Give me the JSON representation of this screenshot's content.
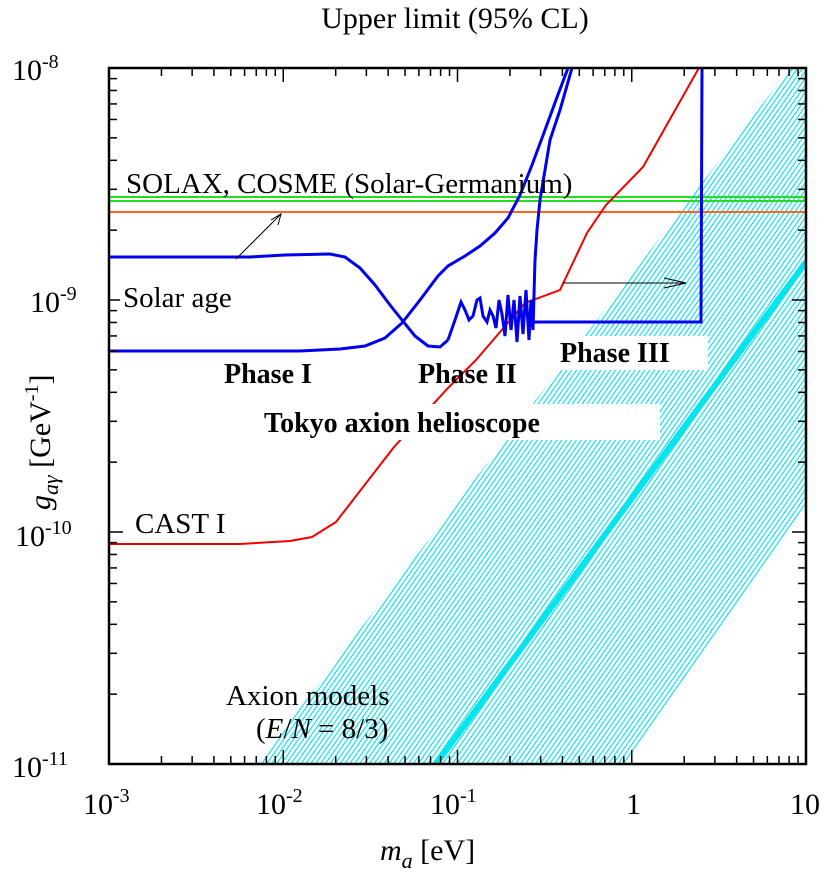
{
  "chart_data": {
    "type": "line",
    "title": "Upper limit (95% CL)",
    "xlabel": "m_a [eV]",
    "ylabel": "g_aγ [GeV^-1]",
    "xscale": "log",
    "yscale": "log",
    "xlim": [
      0.001,
      10
    ],
    "ylim": [
      1e-11,
      1e-08
    ],
    "x_tick_labels": [
      "10^-3",
      "10^-2",
      "10^-1",
      "1",
      "10"
    ],
    "y_tick_labels": [
      "10^-11",
      "10^-10",
      "10^-9",
      "10^-8"
    ],
    "grid": false,
    "series": [
      {
        "name": "Phase I (lower)",
        "color": "#0000ee",
        "points": [
          [
            0.001,
            6.1e-10
          ],
          [
            0.01,
            6.1e-10
          ],
          [
            0.03,
            6.3e-10
          ],
          [
            0.05,
            7.2e-10
          ],
          [
            0.065,
            9e-10
          ],
          [
            0.08,
            1.3e-09
          ],
          [
            0.12,
            1.7e-09
          ],
          [
            0.2,
            4e-09
          ],
          [
            0.25,
            1e-08
          ]
        ]
      },
      {
        "name": "Phase I (upper)",
        "color": "#0000ee",
        "points": [
          [
            0.001,
            1.55e-09
          ],
          [
            0.01,
            1.57e-09
          ],
          [
            0.028,
            1.6e-09
          ],
          [
            0.04,
            1.4e-09
          ],
          [
            0.06,
            9e-10
          ],
          [
            0.08,
            6.4e-10
          ],
          [
            0.09,
            6.7e-10
          ]
        ]
      },
      {
        "name": "Phase II",
        "color": "#0000ee",
        "points": [
          [
            0.09,
            6.7e-10
          ],
          [
            0.1,
            1e-09
          ],
          [
            0.13,
            8e-10
          ],
          [
            0.15,
            1.05e-09
          ],
          [
            0.2,
            7e-10
          ],
          [
            0.27,
            7.5e-10
          ],
          [
            0.28,
            2e-09
          ],
          [
            0.32,
            3e-09
          ],
          [
            0.4,
            1e-08
          ]
        ]
      },
      {
        "name": "Phase III",
        "color": "#0000ee",
        "points": [
          [
            0.27,
            8e-10
          ],
          [
            2.6,
            8e-10
          ],
          [
            2.6,
            1e-08
          ]
        ]
      },
      {
        "name": "CAST I",
        "color": "#ee0000",
        "points": [
          [
            0.001,
            8.8e-11
          ],
          [
            0.006,
            8.8e-11
          ],
          [
            0.012,
            9e-11
          ],
          [
            0.015,
            9.5e-11
          ],
          [
            0.02,
            1.1e-10
          ],
          [
            0.04,
            2.5e-10
          ],
          [
            0.07,
            4.6e-10
          ],
          [
            0.1,
            6.5e-10
          ],
          [
            0.14,
            1.05e-09
          ],
          [
            0.2,
            1.25e-09
          ],
          [
            0.3,
            2e-09
          ],
          [
            0.4,
            2.8e-09
          ],
          [
            0.6,
            4.2e-09
          ],
          [
            1.2,
            1e-08
          ]
        ]
      },
      {
        "name": "SOLAX, COSME (Solar-Germanium)",
        "color": "#22dd22",
        "points": [
          [
            0.001,
            2.7e-09
          ],
          [
            10,
            2.7e-09
          ]
        ]
      },
      {
        "name": "Solar age",
        "color": "#ff6622",
        "points": [
          [
            0.001,
            2.4e-09
          ],
          [
            10,
            2.4e-09
          ]
        ]
      },
      {
        "name": "Axion models (E/N = 8/3)",
        "color": "#00e5ee",
        "type": "band",
        "center_line": [
          [
            0.075,
            1e-11
          ],
          [
            10,
            1.45e-09
          ]
        ]
      }
    ],
    "annotations": [
      "SOLAX, COSME (Solar-Germanium)",
      "Solar age",
      "Phase I",
      "Phase II",
      "Phase III",
      "Tokyo axion helioscope",
      "CAST I",
      "Axion models",
      "(E/N = 8/3)"
    ]
  },
  "labels": {
    "title": "Upper limit (95% CL)",
    "xlabel_var": "m",
    "xlabel_sub": "a",
    "xlabel_unit": " [eV]",
    "ylabel_var": "g",
    "ylabel_sub": "aγ",
    "ylabel_unit": " [GeV",
    "ylabel_exp": "-1",
    "ylabel_close": "]",
    "x_ticks": [
      {
        "base": "10",
        "exp": "-3"
      },
      {
        "base": "10",
        "exp": "-2"
      },
      {
        "base": "10",
        "exp": "-1"
      },
      {
        "base": "1",
        "exp": ""
      },
      {
        "base": "10",
        "exp": ""
      }
    ],
    "y_ticks": [
      {
        "base": "10",
        "exp": "-8"
      },
      {
        "base": "10",
        "exp": "-9"
      },
      {
        "base": "10",
        "exp": "-10"
      },
      {
        "base": "10",
        "exp": "-11"
      }
    ],
    "solax": "SOLAX, COSME (Solar-Germanium)",
    "solar_age": "Solar age",
    "phase1": "Phase I",
    "phase2": "Phase II",
    "phase3": "Phase III",
    "tokyo": "Tokyo axion helioscope",
    "cast": "CAST I",
    "axion_models": "Axion models",
    "axion_en_open": "(",
    "axion_en_E": "E",
    "axion_en_slash": "/",
    "axion_en_N": "N",
    "axion_en_rest": " = 8/3)"
  },
  "colors": {
    "tokyo": "#0000ee",
    "cast": "#ee0000",
    "solax": "#22dd22",
    "solar_age": "#ff6622",
    "axion_band": "#00e5ee"
  }
}
